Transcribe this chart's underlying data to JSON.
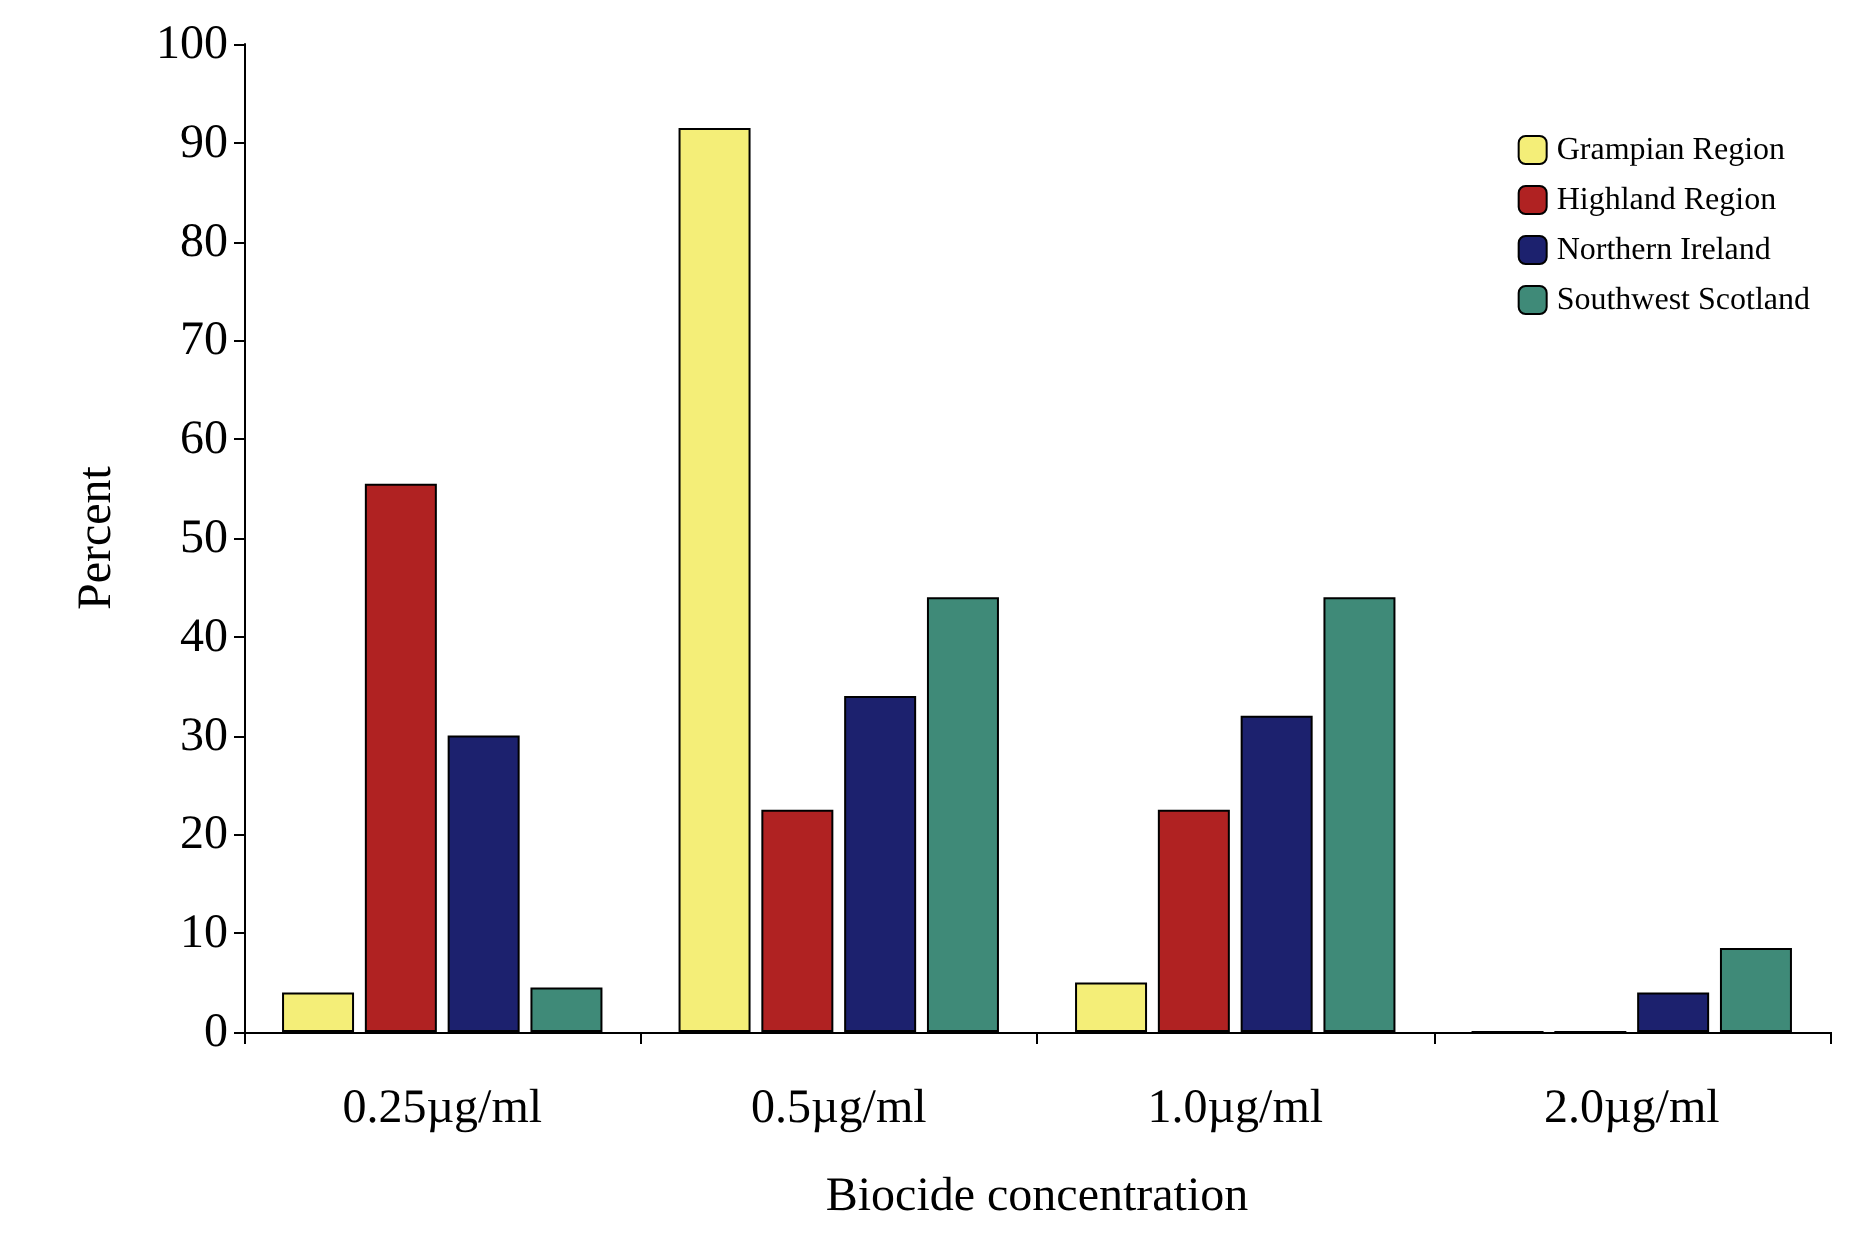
{
  "chart_data": {
    "type": "bar",
    "xlabel": "Biocide concentration",
    "ylabel": "Percent",
    "categories": [
      "0.25µg/ml",
      "0.5µg/ml",
      "1.0µg/ml",
      "2.0µg/ml"
    ],
    "series": [
      {
        "name": "Grampian Region",
        "color": "#f4ee78",
        "values": [
          4,
          91.5,
          5,
          0
        ]
      },
      {
        "name": "Highland Region",
        "color": "#b02222",
        "values": [
          55.5,
          22.5,
          22.5,
          0
        ]
      },
      {
        "name": "Northern Ireland",
        "color": "#1c216e",
        "values": [
          30,
          34,
          32,
          4
        ]
      },
      {
        "name": "Southwest Scotland",
        "color": "#3f8a78",
        "values": [
          4.5,
          44,
          44,
          8.5
        ]
      }
    ],
    "ylim": [
      0,
      100
    ],
    "yticks": [
      0,
      10,
      20,
      30,
      40,
      50,
      60,
      70,
      80,
      90,
      100
    ],
    "grid": false,
    "legend": "top right"
  }
}
